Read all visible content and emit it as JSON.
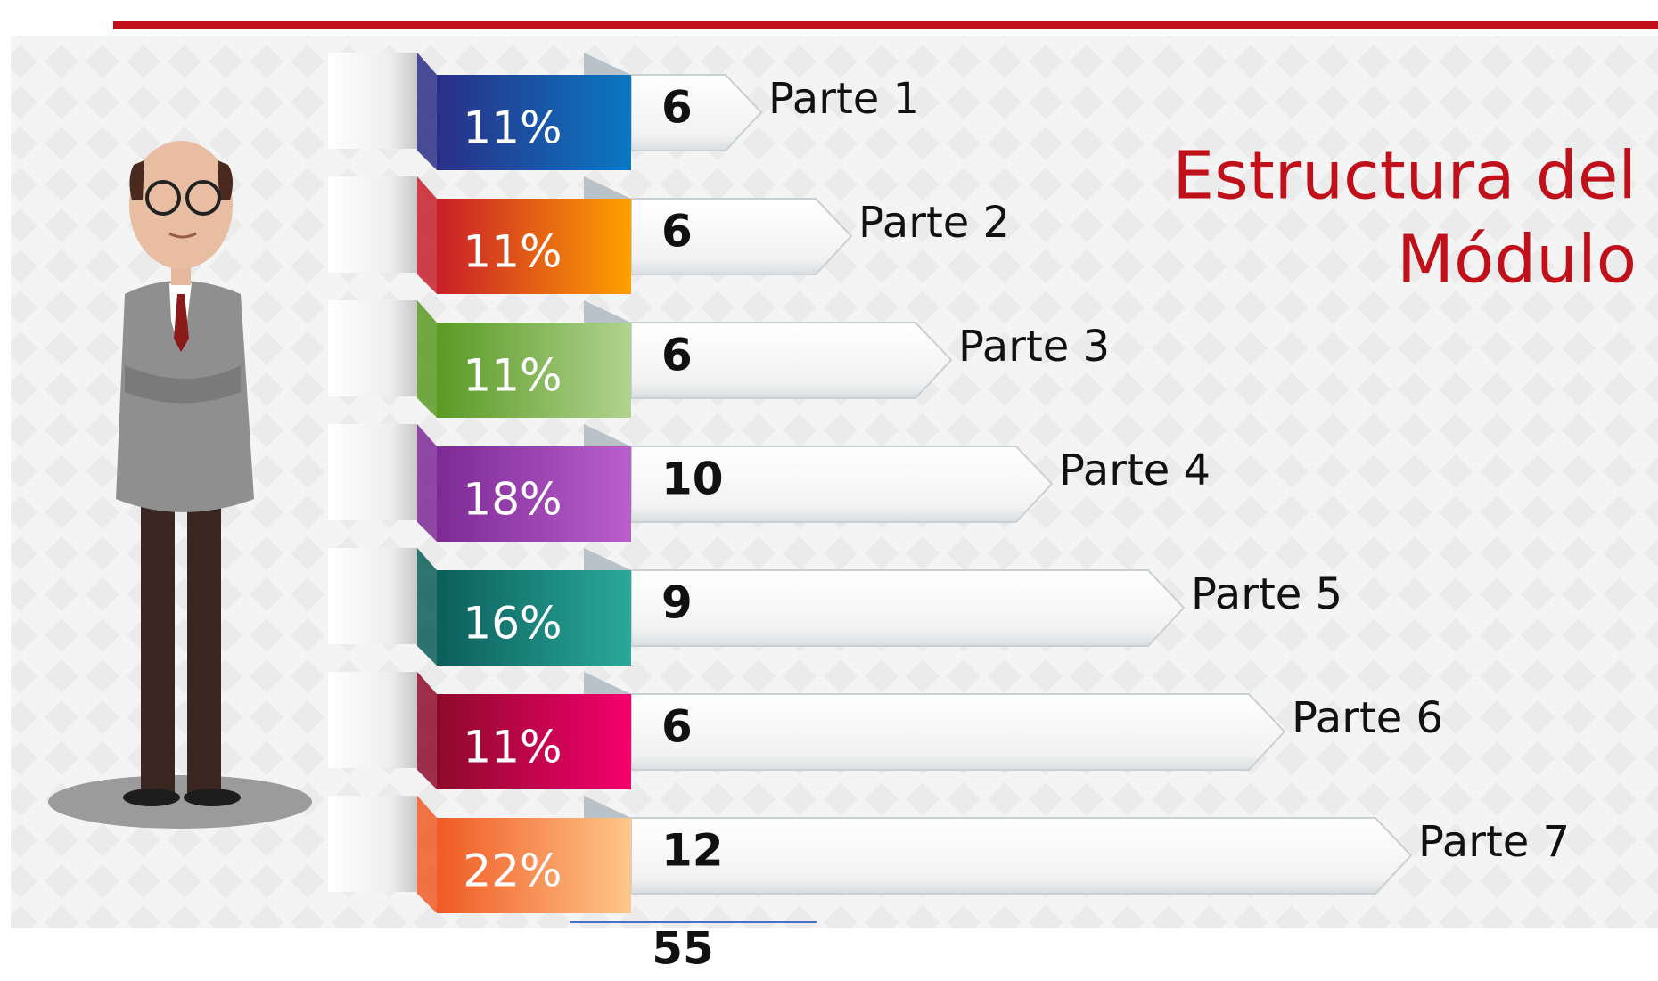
{
  "title_lines": [
    "Estructura del",
    "Módulo"
  ],
  "parts": [
    {
      "percent": "11%",
      "count": 6,
      "label": "Parte 1"
    },
    {
      "percent": "11%",
      "count": 6,
      "label": "Parte 2"
    },
    {
      "percent": "11%",
      "count": 6,
      "label": "Parte 3"
    },
    {
      "percent": "18%",
      "count": 10,
      "label": "Parte 4"
    },
    {
      "percent": "16%",
      "count": 9,
      "label": "Parte 5"
    },
    {
      "percent": "11%",
      "count": 6,
      "label": "Parte 6"
    },
    {
      "percent": "22%",
      "count": 12,
      "label": "Parte 7"
    }
  ],
  "total": 55
}
